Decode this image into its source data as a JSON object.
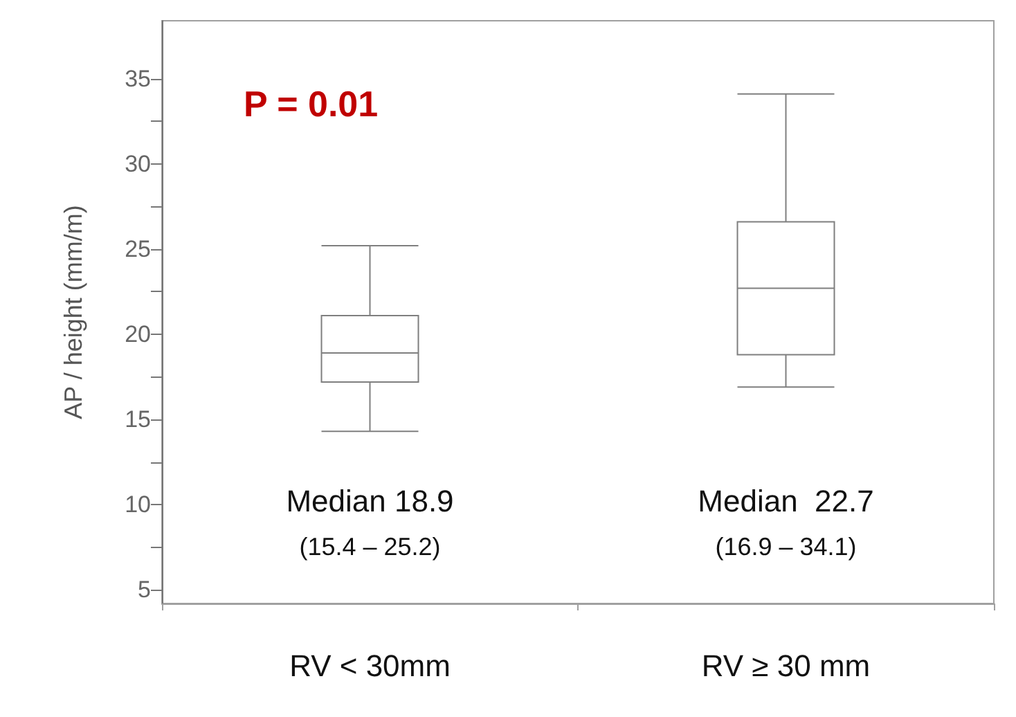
{
  "chart_data": {
    "type": "box",
    "ylabel": "AP / height (mm/m)",
    "categories": [
      "RV < 30mm",
      "RV ≥ 30 mm"
    ],
    "boxes": [
      {
        "low": 14.3,
        "q1": 17.2,
        "median": 18.9,
        "q3": 21.1,
        "high": 25.2
      },
      {
        "low": 16.9,
        "q1": 18.8,
        "median": 22.7,
        "q3": 26.6,
        "high": 34.1
      }
    ],
    "color": "#7f7f7f",
    "ylim": [
      4.2,
      38.4
    ],
    "yticks": [
      5,
      {
        "value": 7.5,
        "label": null
      },
      10,
      {
        "value": 12.5,
        "label": null
      },
      15,
      {
        "value": 17.5,
        "label": null
      },
      20,
      {
        "value": 22.5,
        "label": null
      },
      25,
      {
        "value": 27.5,
        "label": null
      },
      30,
      {
        "value": 32.5,
        "label": null
      },
      35
    ],
    "grid": false,
    "annotations": [
      "P = 0.01",
      "Median 18.9",
      "(15.4 – 25.2)",
      "Median  22.7",
      "(16.9 – 34.1)"
    ]
  }
}
